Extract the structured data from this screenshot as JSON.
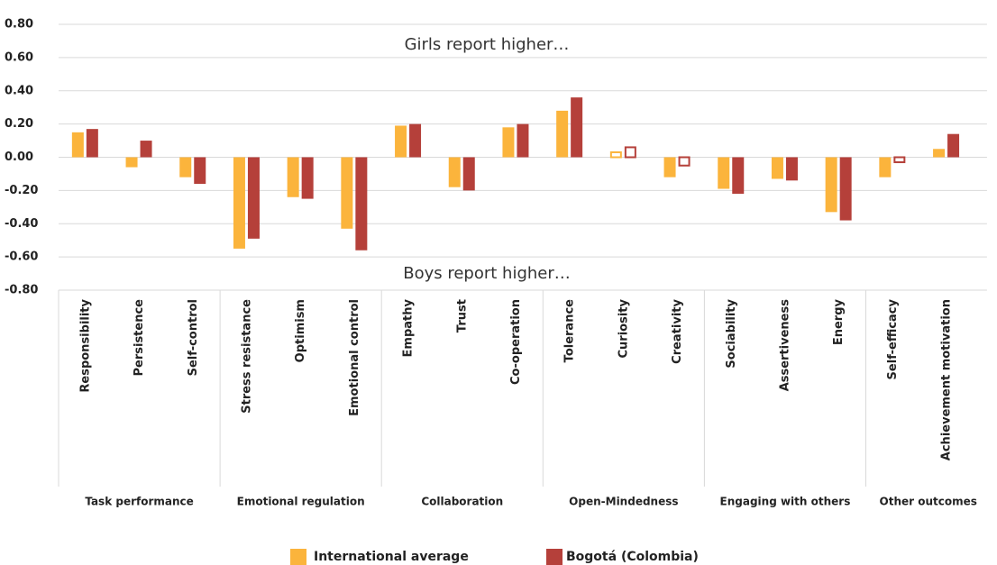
{
  "chart_data": {
    "type": "bar",
    "annotations": [
      "Girls report higher…",
      "Boys report higher…"
    ],
    "groups": [
      {
        "label": "Task performance",
        "categories": [
          "Responsibility",
          "Persistence",
          "Self-control"
        ]
      },
      {
        "label": "Emotional regulation",
        "categories": [
          "Stress resistance",
          "Optimism",
          "Emotional control"
        ]
      },
      {
        "label": "Collaboration",
        "categories": [
          "Empathy",
          "Trust",
          "Co-operation"
        ]
      },
      {
        "label": "Open-Mindedness",
        "categories": [
          "Tolerance",
          "Curiosity",
          "Creativity"
        ]
      },
      {
        "label": "Engaging with others",
        "categories": [
          "Sociability",
          "Assertiveness",
          "Energy"
        ]
      },
      {
        "label": "Other outcomes",
        "categories": [
          "Self-efficacy",
          "Achievement motivation"
        ]
      }
    ],
    "series": [
      {
        "name": "International average",
        "color": "#fbb43c",
        "values": [
          0.15,
          -0.06,
          -0.12,
          -0.55,
          -0.24,
          -0.43,
          0.19,
          -0.18,
          0.18,
          0.28,
          0.03,
          -0.12,
          -0.19,
          -0.13,
          -0.33,
          -0.12,
          0.05
        ],
        "significant": [
          true,
          true,
          true,
          true,
          true,
          true,
          true,
          true,
          true,
          true,
          false,
          true,
          true,
          true,
          true,
          true,
          true
        ]
      },
      {
        "name": "Bogotá (Colombia)",
        "color": "#b5403a",
        "values": [
          0.17,
          0.1,
          -0.16,
          -0.49,
          -0.25,
          -0.56,
          0.2,
          -0.2,
          0.2,
          0.36,
          0.06,
          -0.05,
          -0.22,
          -0.14,
          -0.38,
          -0.03,
          0.14
        ],
        "significant": [
          true,
          true,
          true,
          true,
          true,
          true,
          true,
          true,
          true,
          true,
          false,
          false,
          true,
          true,
          true,
          false,
          true
        ]
      }
    ],
    "ylim": [
      -0.8,
      0.8
    ],
    "yticks": [
      {
        "value": 0.8,
        "label": "0.80"
      },
      {
        "value": 0.6,
        "label": "0.60"
      },
      {
        "value": 0.4,
        "label": "0.40"
      },
      {
        "value": 0.2,
        "label": "0.20"
      },
      {
        "value": 0,
        "label": "0.00"
      },
      {
        "value": -0.2,
        "label": "-0.20"
      },
      {
        "value": -0.4,
        "label": "-0.40"
      },
      {
        "value": -0.6,
        "label": "-0.60"
      },
      {
        "value": -0.8,
        "label": "-0.80"
      }
    ],
    "grid": true
  }
}
